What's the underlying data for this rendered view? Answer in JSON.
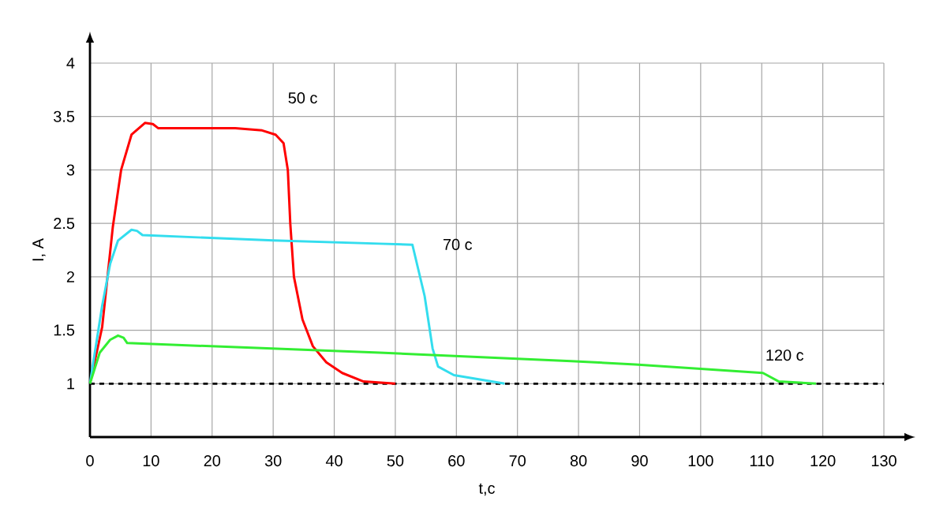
{
  "chart_data": {
    "type": "line",
    "xlabel": "t,c",
    "ylabel": "I, A",
    "xlim": [
      0,
      130
    ],
    "ylim": [
      0.5,
      4
    ],
    "xticks": [
      0,
      10,
      20,
      30,
      40,
      50,
      60,
      70,
      80,
      90,
      100,
      110,
      120,
      130
    ],
    "yticks": [
      {
        "value": 0.5,
        "label": null
      },
      1,
      1.5,
      2,
      2.5,
      3,
      3.5,
      4
    ],
    "grid": true,
    "marker": "none",
    "line_style": "solid",
    "ref_lines": [
      {
        "axis": "y",
        "value": 1,
        "color": "#000000",
        "line_style": "dashed"
      }
    ],
    "annotations": [
      "50 c",
      "70 c",
      "120 c"
    ],
    "series": [
      {
        "color": "#ff0000",
        "x": [
          0,
          2.0,
          3.75,
          5.1,
          6.8,
          9.0,
          10.3,
          11.2,
          23.8,
          28.2,
          30.4,
          31.7,
          32.4,
          32.8,
          33.4,
          34.8,
          36.5,
          38.7,
          41.3,
          44.8,
          50
        ],
        "values": [
          1,
          1.53,
          2.47,
          3.0,
          3.33,
          3.44,
          3.43,
          3.39,
          3.39,
          3.37,
          3.33,
          3.25,
          3.0,
          2.5,
          2.0,
          1.6,
          1.35,
          1.2,
          1.1,
          1.02,
          1.0
        ]
      },
      {
        "color": "#33ddee",
        "x": [
          0,
          2.0,
          3.3,
          4.6,
          6.8,
          7.7,
          8.6,
          30,
          47.4,
          52.8,
          54.8,
          56.1,
          57.0,
          59.6,
          67.9
        ],
        "values": [
          1,
          1.73,
          2.12,
          2.34,
          2.44,
          2.43,
          2.39,
          2.34,
          2.31,
          2.3,
          1.82,
          1.33,
          1.16,
          1.08,
          1.0
        ]
      },
      {
        "color": "#33ee33",
        "x": [
          0,
          1.6,
          3.3,
          4.6,
          5.5,
          6.1,
          47.4,
          78.8,
          89.3,
          110.2,
          112.8,
          118.9
        ],
        "values": [
          1,
          1.29,
          1.41,
          1.45,
          1.43,
          1.38,
          1.29,
          1.21,
          1.18,
          1.1,
          1.02,
          1.0
        ]
      }
    ]
  }
}
